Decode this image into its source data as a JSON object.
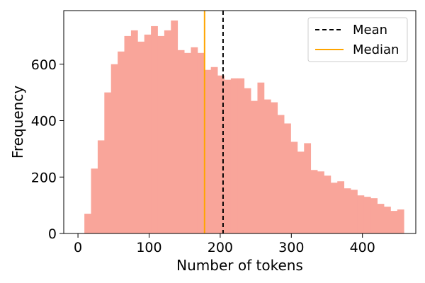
{
  "chart_data": {
    "type": "bar",
    "xlabel": "Number of tokens",
    "ylabel": "Frequency",
    "xlim": [
      -20,
      475
    ],
    "ylim": [
      0,
      790
    ],
    "x_ticks": [
      0,
      100,
      200,
      300,
      400
    ],
    "y_ticks": [
      0,
      200,
      400,
      600
    ],
    "grid": false,
    "bar_color": "#f9a59a",
    "bins": {
      "start": 9,
      "width": 9.36,
      "values": [
        70,
        230,
        330,
        500,
        600,
        645,
        700,
        720,
        680,
        705,
        735,
        700,
        720,
        755,
        650,
        640,
        660,
        640,
        580,
        590,
        560,
        545,
        550,
        550,
        515,
        470,
        535,
        475,
        465,
        420,
        390,
        325,
        290,
        320,
        225,
        220,
        205,
        180,
        185,
        160,
        155,
        135,
        130,
        125,
        105,
        95,
        80,
        85
      ]
    },
    "reference_lines": [
      {
        "name": "Mean",
        "x": 204,
        "color": "#000000",
        "style": "dashed"
      },
      {
        "name": "Median",
        "x": 178,
        "color": "#ffa500",
        "style": "solid"
      }
    ],
    "legend": {
      "position": "top-right",
      "entries": [
        {
          "label": "Mean",
          "color": "#000000",
          "style": "dashed"
        },
        {
          "label": "Median",
          "color": "#ffa500",
          "style": "solid"
        }
      ]
    }
  }
}
